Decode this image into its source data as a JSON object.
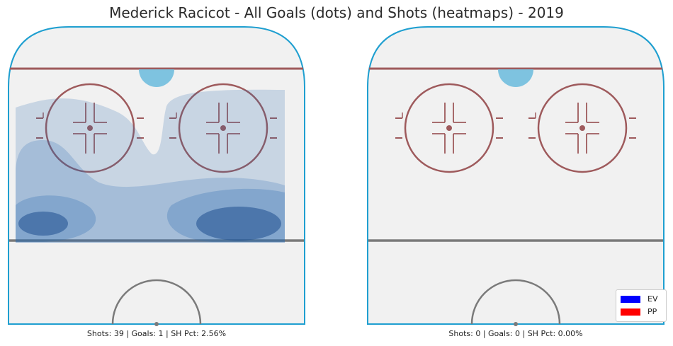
{
  "chart_data": {
    "type": "heatmap",
    "title": "Mederick Racicot - All Goals (dots) and Shots (heatmaps) - 2019",
    "panels": [
      {
        "side": "left",
        "caption": "Shots: 39 | Goals: 1 | SH Pct: 2.56%",
        "shots": 39,
        "goals": 1,
        "sh_pct": "2.56%"
      },
      {
        "side": "right",
        "caption": "Shots: 0 | Goals: 0 | SH Pct: 0.00%",
        "shots": 0,
        "goals": 0,
        "sh_pct": "0.00%"
      }
    ],
    "legend": [
      {
        "label": "EV",
        "color": "#0000ff"
      },
      {
        "label": "PP",
        "color": "#ff0000"
      }
    ],
    "legend_position": "bottom-right",
    "colors": {
      "rink_board": "#1f9fd0",
      "red_line": "#9e5a5c",
      "blue_line": "#7a7a7a",
      "crease": "#7ec3e0",
      "ice": "#f1f1f1",
      "heat": "#2a6bb0"
    }
  }
}
